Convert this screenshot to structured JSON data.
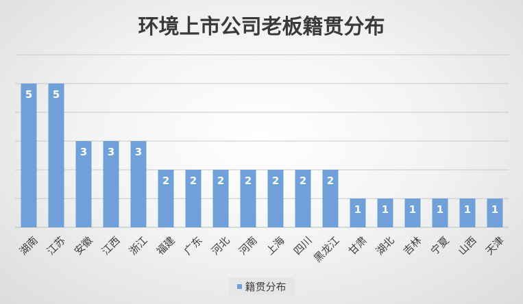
{
  "chart_data": {
    "type": "bar",
    "title": "环境上市公司老板籍贯分布",
    "categories": [
      "湖南",
      "江苏",
      "安徽",
      "江西",
      "浙江",
      "福建",
      "广东",
      "河北",
      "河南",
      "上海",
      "四川",
      "黑龙江",
      "甘肃",
      "湖北",
      "吉林",
      "宁夏",
      "山西",
      "天津"
    ],
    "series": [
      {
        "name": "籍贯分布",
        "values": [
          5,
          5,
          3,
          3,
          3,
          2,
          2,
          2,
          2,
          2,
          2,
          2,
          1,
          1,
          1,
          1,
          1,
          1
        ],
        "color": "#6fa1d8"
      }
    ],
    "xlabel": "",
    "ylabel": "",
    "ylim": [
      0,
      6
    ],
    "grid": true,
    "legend": "bottom",
    "data_labels": true,
    "data_label_color": "#ffffff",
    "gridline_color": "#c8c8c8"
  }
}
